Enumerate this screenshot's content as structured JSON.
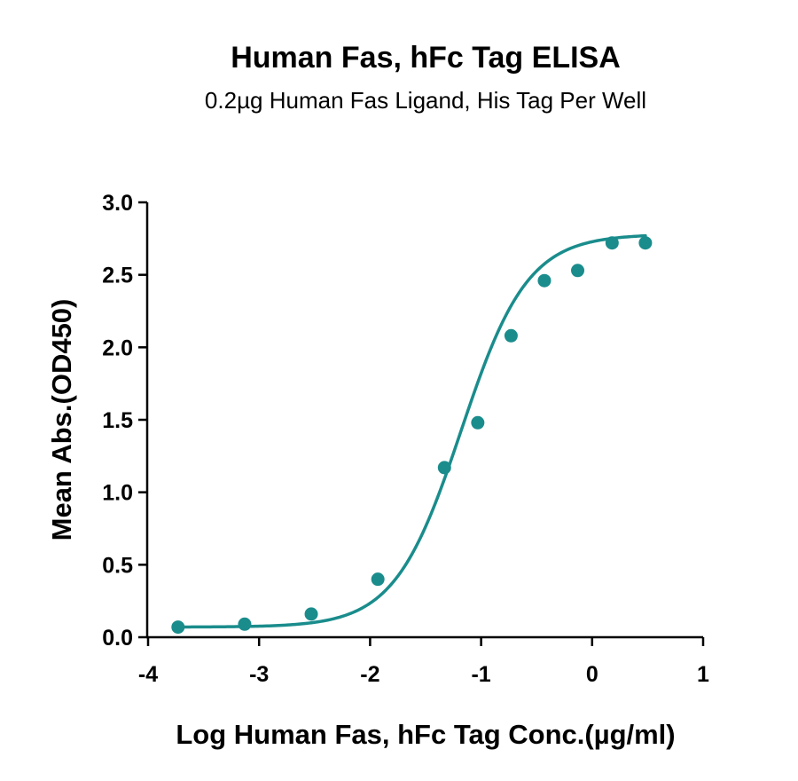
{
  "chart_data": {
    "type": "scatter",
    "title": "Human Fas, hFc Tag ELISA",
    "subtitle": "0.2µg Human Fas Ligand, His Tag Per Well",
    "xlabel": "Log Human Fas, hFc Tag Conc.(µg/ml)",
    "ylabel": "Mean Abs.(OD450)",
    "xlim": [
      -4,
      1
    ],
    "ylim": [
      0,
      3
    ],
    "x_ticks": [
      -4,
      -3,
      -2,
      -1,
      0,
      1
    ],
    "x_tick_labels": [
      "-4",
      "-3",
      "-2",
      "-1",
      "0",
      "1"
    ],
    "y_ticks": [
      0,
      0.5,
      1,
      1.5,
      2,
      2.5,
      3
    ],
    "y_tick_labels": [
      "0.0",
      "0.5",
      "1.0",
      "1.5",
      "2.0",
      "2.5",
      "3.0"
    ],
    "grid": false,
    "series": [
      {
        "color": "#1a8c8c",
        "x": [
          -3.73,
          -3.13,
          -2.53,
          -1.93,
          -1.33,
          -1.03,
          -0.73,
          -0.43,
          -0.13,
          0.18,
          0.48
        ],
        "y": [
          0.07,
          0.09,
          0.16,
          0.4,
          1.17,
          1.48,
          2.08,
          2.46,
          2.53,
          2.72,
          2.72
        ],
        "fit": {
          "model": "4PL",
          "bottom": 0.07,
          "top": 2.78,
          "logEC50": -1.18,
          "hill": 1.45
        }
      }
    ]
  }
}
